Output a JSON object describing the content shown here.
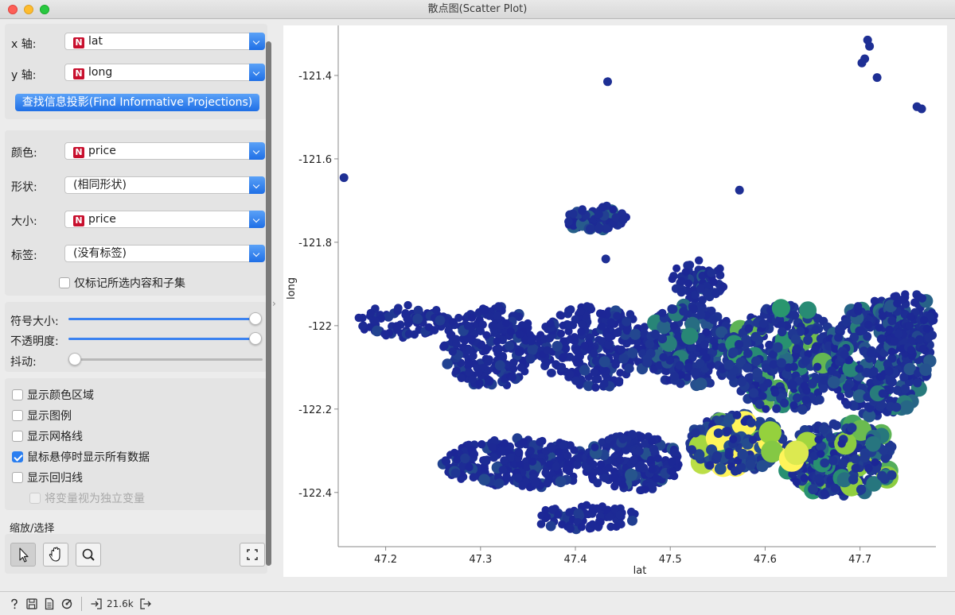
{
  "window": {
    "title": "散点图(Scatter Plot)"
  },
  "axes_box": {
    "x_label": "x 轴:",
    "x_value": "lat",
    "y_label": "y 轴:",
    "y_value": "long",
    "find_button": "查找信息投影(Find Informative Projections)"
  },
  "attributes_box": {
    "color_label": "颜色:",
    "color_value": "price",
    "shape_label": "形状:",
    "shape_value": "(相同形状)",
    "size_label": "大小:",
    "size_value": "price",
    "label_label": "标签:",
    "label_value": "(没有标签)",
    "label_only_selected": "仅标记所选内容和子集",
    "numeric_badge": "N"
  },
  "sliders_box": {
    "symbol_size_label": "符号大小:",
    "symbol_size_level": 1.0,
    "opacity_label": "不透明度:",
    "opacity_level": 1.0,
    "jitter_label": "抖动:",
    "jitter_level": 0.0
  },
  "options_box": {
    "show_color_regions": "显示颜色区域",
    "show_color_regions_checked": false,
    "show_legend": "显示图例",
    "show_legend_checked": false,
    "show_gridlines": "显示网格线",
    "show_gridlines_checked": false,
    "show_all_on_hover": "鼠标悬停时显示所有数据",
    "show_all_on_hover_checked": true,
    "show_regression": "显示回归线",
    "show_regression_checked": false,
    "treat_as_independent": "将变量视为独立变量",
    "treat_as_independent_checked": false
  },
  "zoom_select": {
    "title": "缩放/选择"
  },
  "status": {
    "count": "21.6k"
  },
  "colors": {
    "accent": "#2a7ef0",
    "low": "#1a2a9c",
    "high": "#fff75a"
  },
  "chart_data": {
    "type": "scatter",
    "xlabel": "lat",
    "ylabel": "long",
    "xlim": [
      47.15,
      47.78
    ],
    "ylim": [
      -122.53,
      -121.28
    ],
    "x_ticks": [
      "47.2",
      "47.3",
      "47.4",
      "47.5",
      "47.6",
      "47.7"
    ],
    "y_ticks": [
      "-121.4",
      "-121.6",
      "-121.8",
      "-122",
      "-122.2",
      "-122.4"
    ],
    "x_tick_values": [
      47.2,
      47.3,
      47.4,
      47.5,
      47.6,
      47.7
    ],
    "y_tick_values": [
      -121.4,
      -121.6,
      -121.8,
      -122.0,
      -122.2,
      -122.4
    ],
    "color_by": "price",
    "size_by": "price",
    "grid": false,
    "outlier_points": [
      {
        "x": 47.708,
        "y": -121.315,
        "price": 0.05
      },
      {
        "x": 47.71,
        "y": -121.33,
        "price": 0.05
      },
      {
        "x": 47.705,
        "y": -121.36,
        "price": 0.05
      },
      {
        "x": 47.702,
        "y": -121.37,
        "price": 0.05
      },
      {
        "x": 47.718,
        "y": -121.405,
        "price": 0.05
      },
      {
        "x": 47.434,
        "y": -121.415,
        "price": 0.05
      },
      {
        "x": 47.76,
        "y": -121.475,
        "price": 0.05
      },
      {
        "x": 47.765,
        "y": -121.48,
        "price": 0.05
      },
      {
        "x": 47.156,
        "y": -121.645,
        "price": 0.05
      },
      {
        "x": 47.573,
        "y": -121.675,
        "price": 0.05
      },
      {
        "x": 47.432,
        "y": -121.84,
        "price": 0.05
      },
      {
        "x": 47.628,
        "y": -122.32,
        "price": 1.0
      },
      {
        "x": 47.633,
        "y": -122.305,
        "price": 0.95
      }
    ],
    "clusters": [
      {
        "cx": 47.42,
        "cy": -121.74,
        "rx": 0.035,
        "ry": 0.03,
        "n": 70,
        "price": 0.1
      },
      {
        "cx": 47.53,
        "cy": -121.89,
        "rx": 0.03,
        "ry": 0.05,
        "n": 70,
        "price": 0.1
      },
      {
        "cx": 47.22,
        "cy": -121.99,
        "rx": 0.05,
        "ry": 0.04,
        "n": 80,
        "price": 0.05
      },
      {
        "cx": 47.31,
        "cy": -122.05,
        "rx": 0.05,
        "ry": 0.1,
        "n": 240,
        "price": 0.05
      },
      {
        "cx": 47.42,
        "cy": -122.05,
        "rx": 0.06,
        "ry": 0.1,
        "n": 280,
        "price": 0.06
      },
      {
        "cx": 47.52,
        "cy": -122.05,
        "rx": 0.05,
        "ry": 0.1,
        "n": 260,
        "price": 0.15
      },
      {
        "cx": 47.62,
        "cy": -122.08,
        "rx": 0.06,
        "ry": 0.13,
        "n": 380,
        "price": 0.22
      },
      {
        "cx": 47.72,
        "cy": -122.08,
        "rx": 0.055,
        "ry": 0.14,
        "n": 380,
        "price": 0.15
      },
      {
        "cx": 47.34,
        "cy": -122.33,
        "rx": 0.08,
        "ry": 0.06,
        "n": 300,
        "price": 0.06
      },
      {
        "cx": 47.46,
        "cy": -122.33,
        "rx": 0.05,
        "ry": 0.07,
        "n": 220,
        "price": 0.08
      },
      {
        "cx": 47.57,
        "cy": -122.28,
        "rx": 0.05,
        "ry": 0.07,
        "n": 240,
        "price": 0.4
      },
      {
        "cx": 47.68,
        "cy": -122.32,
        "rx": 0.06,
        "ry": 0.09,
        "n": 300,
        "price": 0.25
      },
      {
        "cx": 47.41,
        "cy": -122.46,
        "rx": 0.055,
        "ry": 0.03,
        "n": 80,
        "price": 0.05
      },
      {
        "cx": 47.75,
        "cy": -122.0,
        "rx": 0.03,
        "ry": 0.08,
        "n": 120,
        "price": 0.1
      }
    ]
  }
}
